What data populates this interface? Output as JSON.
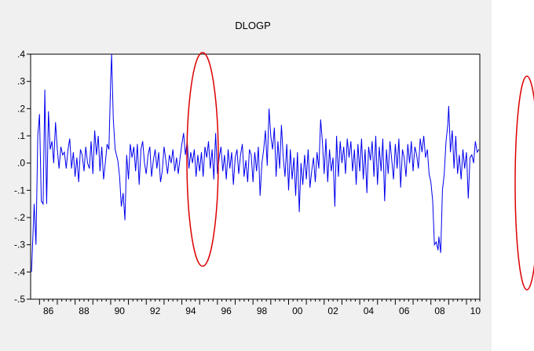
{
  "chart_data": {
    "type": "line",
    "title": "DLOGP",
    "xlabel": "",
    "ylabel": "",
    "x_start": 1985.5,
    "x_end": 2010.75,
    "x_tick_labels": [
      "86",
      "88",
      "90",
      "92",
      "94",
      "96",
      "98",
      "00",
      "02",
      "04",
      "06",
      "08",
      "10"
    ],
    "x_tick_years": [
      1986,
      1988,
      1990,
      1992,
      1994,
      1996,
      1998,
      2000,
      2002,
      2004,
      2006,
      2008,
      2010
    ],
    "ylim": [
      -0.5,
      0.4
    ],
    "y_ticks": [
      0.4,
      0.3,
      0.2,
      0.1,
      0.0,
      -0.1,
      -0.2,
      -0.3,
      -0.4,
      -0.5
    ],
    "y_tick_labels": [
      ".4",
      ".3",
      ".2",
      ".1",
      ".0",
      "-.1",
      "-.2",
      "-.3",
      "-.4",
      "-.5"
    ],
    "grid": false,
    "series": [
      {
        "color": "#0000ee",
        "points": [
          [
            1985.55,
            -0.4
          ],
          [
            1985.7,
            -0.15
          ],
          [
            1985.8,
            -0.3
          ],
          [
            1985.9,
            0.1
          ],
          [
            1986.0,
            0.18
          ],
          [
            1986.1,
            -0.14
          ],
          [
            1986.2,
            -0.15
          ],
          [
            1986.3,
            0.27
          ],
          [
            1986.4,
            -0.15
          ],
          [
            1986.5,
            0.19
          ],
          [
            1986.6,
            0.05
          ],
          [
            1986.7,
            0.08
          ],
          [
            1986.8,
            0.0
          ],
          [
            1986.9,
            0.15
          ],
          [
            1987.0,
            0.05
          ],
          [
            1987.1,
            -0.02
          ],
          [
            1987.2,
            0.06
          ],
          [
            1987.3,
            0.03
          ],
          [
            1987.4,
            0.04
          ],
          [
            1987.5,
            -0.02
          ],
          [
            1987.6,
            0.05
          ],
          [
            1987.7,
            0.09
          ],
          [
            1987.8,
            -0.02
          ],
          [
            1987.9,
            0.04
          ],
          [
            1988.0,
            -0.05
          ],
          [
            1988.1,
            0.02
          ],
          [
            1988.2,
            -0.07
          ],
          [
            1988.3,
            0.05
          ],
          [
            1988.4,
            0.03
          ],
          [
            1988.5,
            -0.03
          ],
          [
            1988.6,
            0.06
          ],
          [
            1988.7,
            0.0
          ],
          [
            1988.8,
            -0.02
          ],
          [
            1988.9,
            0.08
          ],
          [
            1989.0,
            -0.04
          ],
          [
            1989.1,
            0.12
          ],
          [
            1989.2,
            0.03
          ],
          [
            1989.3,
            0.1
          ],
          [
            1989.4,
            -0.03
          ],
          [
            1989.5,
            0.06
          ],
          [
            1989.6,
            -0.06
          ],
          [
            1989.7,
            0.0
          ],
          [
            1989.8,
            0.07
          ],
          [
            1989.9,
            0.05
          ],
          [
            1990.0,
            0.3
          ],
          [
            1990.05,
            0.4
          ],
          [
            1990.15,
            0.16
          ],
          [
            1990.25,
            0.05
          ],
          [
            1990.4,
            0.01
          ],
          [
            1990.5,
            -0.05
          ],
          [
            1990.6,
            -0.16
          ],
          [
            1990.7,
            -0.11
          ],
          [
            1990.8,
            -0.21
          ],
          [
            1990.9,
            0.03
          ],
          [
            1991.0,
            -0.06
          ],
          [
            1991.1,
            0.07
          ],
          [
            1991.2,
            0.02
          ],
          [
            1991.3,
            0.06
          ],
          [
            1991.4,
            -0.03
          ],
          [
            1991.5,
            0.07
          ],
          [
            1991.6,
            -0.08
          ],
          [
            1991.7,
            0.05
          ],
          [
            1991.8,
            0.08
          ],
          [
            1991.9,
            0.0
          ],
          [
            1992.0,
            -0.04
          ],
          [
            1992.1,
            0.03
          ],
          [
            1992.2,
            0.06
          ],
          [
            1992.3,
            -0.05
          ],
          [
            1992.4,
            0.01
          ],
          [
            1992.5,
            0.05
          ],
          [
            1992.6,
            -0.02
          ],
          [
            1992.7,
            0.04
          ],
          [
            1992.8,
            -0.07
          ],
          [
            1992.9,
            -0.03
          ],
          [
            1993.0,
            0.06
          ],
          [
            1993.1,
            0.01
          ],
          [
            1993.2,
            -0.04
          ],
          [
            1993.3,
            0.03
          ],
          [
            1993.4,
            0.0
          ],
          [
            1993.5,
            0.05
          ],
          [
            1993.6,
            -0.03
          ],
          [
            1993.7,
            0.02
          ],
          [
            1993.8,
            -0.04
          ],
          [
            1993.9,
            0.02
          ],
          [
            1994.0,
            0.07
          ],
          [
            1994.1,
            0.11
          ],
          [
            1994.2,
            0.03
          ],
          [
            1994.3,
            0.08
          ],
          [
            1994.4,
            -0.02
          ],
          [
            1994.5,
            0.04
          ],
          [
            1994.6,
            0.0
          ],
          [
            1994.7,
            0.05
          ],
          [
            1994.8,
            -0.05
          ],
          [
            1994.9,
            0.03
          ],
          [
            1995.0,
            -0.03
          ],
          [
            1995.1,
            0.04
          ],
          [
            1995.2,
            -0.05
          ],
          [
            1995.3,
            0.06
          ],
          [
            1995.4,
            0.02
          ],
          [
            1995.5,
            0.08
          ],
          [
            1995.6,
            -0.02
          ],
          [
            1995.7,
            0.05
          ],
          [
            1995.8,
            -0.06
          ],
          [
            1995.9,
            0.11
          ],
          [
            1996.0,
            -0.04
          ],
          [
            1996.1,
            0.02
          ],
          [
            1996.2,
            0.06
          ],
          [
            1996.3,
            -0.03
          ],
          [
            1996.4,
            0.03
          ],
          [
            1996.5,
            -0.06
          ],
          [
            1996.6,
            0.05
          ],
          [
            1996.7,
            -0.02
          ],
          [
            1996.8,
            0.04
          ],
          [
            1996.9,
            -0.08
          ],
          [
            1997.0,
            0.02
          ],
          [
            1997.1,
            0.05
          ],
          [
            1997.2,
            -0.04
          ],
          [
            1997.3,
            0.03
          ],
          [
            1997.4,
            0.07
          ],
          [
            1997.5,
            -0.05
          ],
          [
            1997.6,
            0.01
          ],
          [
            1997.7,
            -0.07
          ],
          [
            1997.8,
            0.05
          ],
          [
            1997.9,
            0.03
          ],
          [
            1998.0,
            -0.07
          ],
          [
            1998.1,
            0.04
          ],
          [
            1998.2,
            -0.03
          ],
          [
            1998.3,
            0.06
          ],
          [
            1998.4,
            -0.12
          ],
          [
            1998.5,
            0.0
          ],
          [
            1998.6,
            0.05
          ],
          [
            1998.7,
            0.12
          ],
          [
            1998.8,
            -0.01
          ],
          [
            1998.9,
            0.2
          ],
          [
            1999.0,
            0.1
          ],
          [
            1999.1,
            0.05
          ],
          [
            1999.2,
            0.13
          ],
          [
            1999.3,
            -0.05
          ],
          [
            1999.4,
            0.08
          ],
          [
            1999.5,
            -0.02
          ],
          [
            1999.6,
            0.14
          ],
          [
            1999.7,
            0.02
          ],
          [
            1999.8,
            -0.05
          ],
          [
            1999.9,
            0.07
          ],
          [
            2000.0,
            -0.1
          ],
          [
            2000.1,
            0.05
          ],
          [
            2000.2,
            -0.06
          ],
          [
            2000.3,
            0.02
          ],
          [
            2000.4,
            -0.12
          ],
          [
            2000.5,
            0.04
          ],
          [
            2000.6,
            -0.18
          ],
          [
            2000.7,
            0.0
          ],
          [
            2000.8,
            -0.08
          ],
          [
            2000.9,
            0.03
          ],
          [
            2001.0,
            -0.06
          ],
          [
            2001.1,
            0.05
          ],
          [
            2001.2,
            -0.09
          ],
          [
            2001.3,
            -0.03
          ],
          [
            2001.4,
            0.02
          ],
          [
            2001.5,
            -0.07
          ],
          [
            2001.6,
            0.04
          ],
          [
            2001.7,
            -0.02
          ],
          [
            2001.8,
            0.16
          ],
          [
            2001.9,
            0.08
          ],
          [
            2002.0,
            -0.04
          ],
          [
            2002.1,
            0.09
          ],
          [
            2002.2,
            -0.07
          ],
          [
            2002.3,
            0.05
          ],
          [
            2002.4,
            -0.03
          ],
          [
            2002.5,
            0.02
          ],
          [
            2002.6,
            -0.16
          ],
          [
            2002.7,
            0.1
          ],
          [
            2002.8,
            -0.05
          ],
          [
            2002.9,
            0.08
          ],
          [
            2003.0,
            0.0
          ],
          [
            2003.1,
            0.06
          ],
          [
            2003.2,
            -0.04
          ],
          [
            2003.3,
            0.09
          ],
          [
            2003.4,
            0.02
          ],
          [
            2003.5,
            0.08
          ],
          [
            2003.6,
            -0.03
          ],
          [
            2003.7,
            0.05
          ],
          [
            2003.8,
            -0.08
          ],
          [
            2003.9,
            0.07
          ],
          [
            2004.0,
            -0.03
          ],
          [
            2004.1,
            0.09
          ],
          [
            2004.2,
            -0.06
          ],
          [
            2004.3,
            0.05
          ],
          [
            2004.4,
            -0.11
          ],
          [
            2004.5,
            0.06
          ],
          [
            2004.6,
            0.01
          ],
          [
            2004.7,
            0.08
          ],
          [
            2004.8,
            -0.05
          ],
          [
            2004.9,
            0.1
          ],
          [
            2005.0,
            -0.08
          ],
          [
            2005.1,
            0.06
          ],
          [
            2005.2,
            -0.03
          ],
          [
            2005.3,
            0.09
          ],
          [
            2005.4,
            -0.14
          ],
          [
            2005.5,
            0.05
          ],
          [
            2005.6,
            -0.04
          ],
          [
            2005.7,
            0.08
          ],
          [
            2005.8,
            0.01
          ],
          [
            2005.9,
            -0.06
          ],
          [
            2006.0,
            0.07
          ],
          [
            2006.1,
            -0.02
          ],
          [
            2006.2,
            0.09
          ],
          [
            2006.3,
            -0.09
          ],
          [
            2006.4,
            0.05
          ],
          [
            2006.5,
            0.02
          ],
          [
            2006.6,
            -0.05
          ],
          [
            2006.7,
            0.07
          ],
          [
            2006.8,
            0.0
          ],
          [
            2006.9,
            0.08
          ],
          [
            2007.0,
            -0.03
          ],
          [
            2007.1,
            0.06
          ],
          [
            2007.2,
            0.03
          ],
          [
            2007.3,
            -0.02
          ],
          [
            2007.4,
            0.09
          ],
          [
            2007.5,
            0.04
          ],
          [
            2007.6,
            0.1
          ],
          [
            2007.7,
            0.02
          ],
          [
            2007.8,
            0.05
          ],
          [
            2007.9,
            -0.04
          ],
          [
            2008.0,
            -0.07
          ],
          [
            2008.1,
            -0.14
          ],
          [
            2008.2,
            -0.3
          ],
          [
            2008.3,
            -0.29
          ],
          [
            2008.4,
            -0.32
          ],
          [
            2008.45,
            -0.27
          ],
          [
            2008.55,
            -0.33
          ],
          [
            2008.65,
            -0.1
          ],
          [
            2008.75,
            -0.04
          ],
          [
            2008.85,
            0.08
          ],
          [
            2008.95,
            0.14
          ],
          [
            2009.0,
            0.21
          ],
          [
            2009.1,
            0.04
          ],
          [
            2009.2,
            0.12
          ],
          [
            2009.3,
            -0.02
          ],
          [
            2009.4,
            0.1
          ],
          [
            2009.5,
            -0.04
          ],
          [
            2009.6,
            0.03
          ],
          [
            2009.7,
            -0.06
          ],
          [
            2009.8,
            0.05
          ],
          [
            2009.9,
            -0.02
          ],
          [
            2010.0,
            0.04
          ],
          [
            2010.1,
            -0.13
          ],
          [
            2010.2,
            0.02
          ],
          [
            2010.3,
            0.03
          ],
          [
            2010.4,
            0.0
          ],
          [
            2010.5,
            0.08
          ],
          [
            2010.6,
            0.04
          ],
          [
            2010.7,
            0.05
          ]
        ]
      }
    ],
    "annotations": [
      {
        "shape": "ellipse",
        "color": "#dd0000"
      },
      {
        "shape": "ellipse",
        "color": "#dd0000"
      }
    ]
  }
}
